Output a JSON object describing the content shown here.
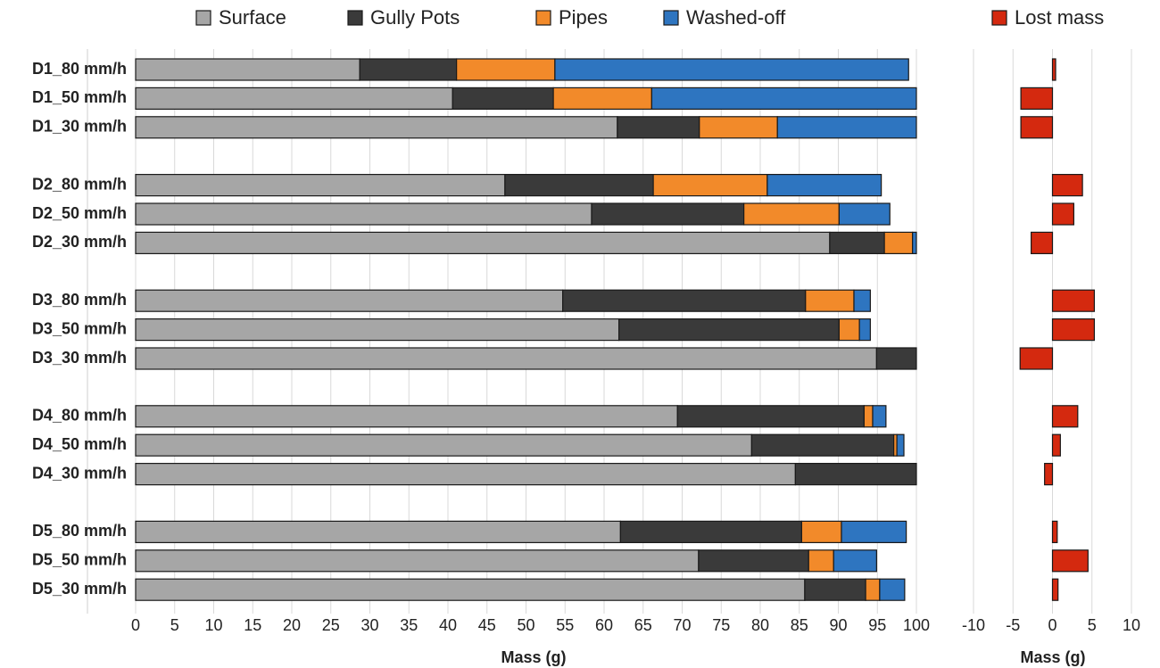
{
  "chart_data": [
    {
      "type": "bar",
      "horizontal": true,
      "stacked": true,
      "categories": [
        "D1_80 mm/h",
        "D1_50 mm/h",
        "D1_30 mm/h",
        "D2_80 mm/h",
        "D2_50 mm/h",
        "D2_30 mm/h",
        "D3_80 mm/h",
        "D3_50 mm/h",
        "D3_30 mm/h",
        "D4_80 mm/h",
        "D4_50 mm/h",
        "D4_30 mm/h",
        "D5_80 mm/h",
        "D5_50 mm/h",
        "D5_30 mm/h"
      ],
      "series": [
        {
          "name": "Surface",
          "color": "#a6a6a6",
          "values": [
            28.7,
            40.6,
            61.7,
            47.3,
            58.4,
            88.9,
            54.7,
            61.9,
            94.9,
            69.4,
            78.9,
            84.5,
            62.1,
            72.1,
            85.7
          ]
        },
        {
          "name": "Gully Pots",
          "color": "#3a3a3a",
          "values": [
            12.4,
            12.9,
            10.5,
            19.0,
            19.5,
            7.0,
            31.1,
            28.2,
            5.1,
            23.9,
            18.2,
            15.5,
            23.2,
            14.1,
            7.8
          ]
        },
        {
          "name": "Pipes",
          "color": "#f28a2a",
          "values": [
            12.6,
            12.6,
            10.0,
            14.6,
            12.2,
            3.6,
            6.2,
            2.6,
            0,
            1.1,
            0.4,
            0,
            5.1,
            3.2,
            1.8
          ]
        },
        {
          "name": "Washed-off",
          "color": "#2e75c0",
          "values": [
            45.3,
            33.9,
            17.8,
            14.6,
            6.5,
            0.5,
            2.1,
            1.4,
            0,
            1.7,
            0.9,
            0,
            8.3,
            5.5,
            3.2
          ]
        }
      ],
      "xlim": [
        0,
        100
      ],
      "xticks": [
        0,
        5,
        10,
        15,
        20,
        25,
        30,
        35,
        40,
        45,
        50,
        55,
        60,
        65,
        70,
        75,
        80,
        85,
        90,
        95,
        100
      ],
      "xlabel": "Mass (g)",
      "grid": true
    },
    {
      "type": "bar",
      "horizontal": true,
      "stacked": false,
      "series": [
        {
          "name": "Lost mass",
          "color": "#d4290f",
          "values": [
            0.4,
            -4.0,
            -4.0,
            3.8,
            2.7,
            -2.7,
            5.3,
            5.3,
            -4.1,
            3.2,
            1.0,
            -1.0,
            0.6,
            4.5,
            0.7
          ]
        }
      ],
      "xlim": [
        -10,
        10
      ],
      "xticks": [
        -10,
        -5,
        0,
        5,
        10
      ],
      "xlabel": "Mass (g)",
      "grid": true
    }
  ]
}
